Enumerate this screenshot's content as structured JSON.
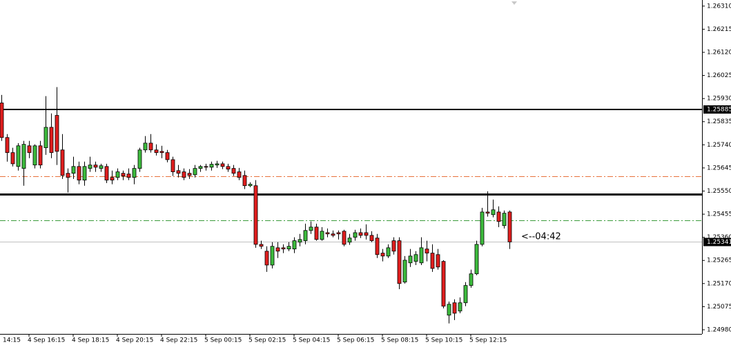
{
  "chart_data": {
    "type": "candlestick",
    "categories": [
      null,
      null,
      null,
      null,
      null,
      "4 Sep 16:15",
      null,
      null,
      null,
      null,
      null,
      null,
      null,
      "4 Sep 18:15",
      null,
      null,
      null,
      null,
      null,
      null,
      null,
      "4 Sep 20:15",
      null,
      null,
      null,
      null,
      null,
      null,
      null,
      "4 Sep 22:15",
      null,
      null,
      null,
      null,
      null,
      null,
      null,
      "5 Sep 00:15",
      null,
      null,
      null,
      null,
      null,
      null,
      null,
      "5 Sep 02:15",
      null,
      null,
      null,
      null,
      null,
      null,
      null,
      "5 Sep 04:15",
      null,
      null,
      null,
      null,
      null,
      null,
      null,
      "5 Sep 06:15",
      null,
      null,
      null,
      null,
      null,
      null,
      null,
      "5 Sep 08:15",
      null,
      null,
      null,
      null,
      null,
      null,
      null,
      "5 Sep 10:15",
      null,
      null,
      null,
      null,
      null,
      null,
      null,
      "5 Sep 12:15",
      null,
      null,
      null,
      null,
      null,
      null,
      null
    ],
    "first_label": "14:15",
    "open": [
      1.25912,
      1.2577,
      1.25708,
      1.25651,
      1.25643,
      1.25736,
      1.25657,
      1.25736,
      1.25728,
      1.25812,
      1.25861,
      1.25719,
      1.25623,
      1.25623,
      1.25651,
      1.25595,
      1.25643,
      1.25657,
      1.25643,
      1.25651,
      1.25606,
      1.25606,
      1.25623,
      1.2562,
      1.25606,
      1.25643,
      1.25719,
      1.25747,
      1.25719,
      1.25713,
      1.25708,
      1.25679,
      1.25634,
      1.25629,
      1.25623,
      1.25617,
      1.25643,
      1.25651,
      1.25648,
      1.25657,
      1.25662,
      1.25651,
      1.25643,
      1.25629,
      1.25614,
      1.25572,
      1.25572,
      1.25331,
      1.25303,
      1.25246,
      1.25317,
      1.25317,
      1.25312,
      1.25312,
      1.2534,
      1.25346,
      1.25388,
      1.25402,
      1.25351,
      1.25379,
      1.25374,
      1.25379,
      1.25385,
      1.2534,
      1.2536,
      1.25379,
      1.25379,
      1.25368,
      1.25357,
      1.25295,
      1.25283,
      1.25346,
      1.25346,
      1.25176,
      1.25255,
      1.25261,
      1.25255,
      1.25312,
      1.25295,
      1.25289,
      1.25261,
      1.2504,
      1.25091,
      1.25057,
      1.25091,
      1.25162,
      1.2521,
      1.25331,
      1.25464,
      1.25453,
      1.25464,
      1.25408,
      1.25464
    ],
    "high": [
      1.25945,
      1.25784,
      1.25728,
      1.25747,
      1.25756,
      1.25756,
      1.25742,
      1.25756,
      1.2594,
      1.25869,
      1.25977,
      1.25784,
      1.25643,
      1.25691,
      1.25671,
      1.25671,
      1.25691,
      1.25671,
      1.25662,
      1.25662,
      1.25634,
      1.25643,
      1.25634,
      1.25643,
      1.25657,
      1.25728,
      1.25776,
      1.25784,
      1.25742,
      1.25736,
      1.25719,
      1.25691,
      1.25657,
      1.25643,
      1.2564,
      1.25657,
      1.25657,
      1.25662,
      1.25671,
      1.25674,
      1.25671,
      1.25662,
      1.25657,
      1.25645,
      1.25634,
      1.25586,
      1.25595,
      1.25346,
      1.25323,
      1.2534,
      1.2534,
      1.25331,
      1.2534,
      1.2536,
      1.25374,
      1.25416,
      1.25425,
      1.25416,
      1.25402,
      1.25396,
      1.25388,
      1.25388,
      1.25391,
      1.25374,
      1.25391,
      1.25396,
      1.25413,
      1.25385,
      1.25374,
      1.25312,
      1.25331,
      1.2536,
      1.2536,
      1.25283,
      1.25312,
      1.25303,
      1.2536,
      1.25346,
      1.25331,
      1.25312,
      1.25266,
      1.25096,
      1.25105,
      1.25113,
      1.25176,
      1.25227,
      1.25346,
      1.25481,
      1.25549,
      1.25515,
      1.25487,
      1.2547,
      1.2547
    ],
    "low": [
      1.25756,
      1.25671,
      1.25651,
      1.25634,
      1.25572,
      1.25685,
      1.25643,
      1.25643,
      1.25699,
      1.25685,
      1.25657,
      1.256,
      1.25544,
      1.256,
      1.25578,
      1.25572,
      1.25629,
      1.25629,
      1.25629,
      1.25583,
      1.25578,
      1.25595,
      1.25595,
      1.25595,
      1.25578,
      1.25629,
      1.25708,
      1.25708,
      1.25696,
      1.25685,
      1.25668,
      1.25612,
      1.25606,
      1.25595,
      1.256,
      1.25606,
      1.25629,
      1.25634,
      1.25634,
      1.25645,
      1.2564,
      1.25629,
      1.25612,
      1.25595,
      1.25558,
      1.25566,
      1.25317,
      1.25312,
      1.25218,
      1.25232,
      1.25275,
      1.25295,
      1.25303,
      1.25295,
      1.25323,
      1.25331,
      1.25374,
      1.25346,
      1.25346,
      1.2536,
      1.2536,
      1.25351,
      1.25323,
      1.25329,
      1.25346,
      1.25357,
      1.25351,
      1.2534,
      1.25275,
      1.25261,
      1.25275,
      1.25289,
      1.25147,
      1.2517,
      1.25238,
      1.25246,
      1.25246,
      1.25261,
      1.25218,
      1.25227,
      1.25068,
      1.25006,
      1.2502,
      1.25048,
      1.25077,
      1.25153,
      1.25204,
      1.25323,
      1.25445,
      1.25442,
      1.25402,
      1.25396,
      1.25312
    ],
    "close": [
      1.2577,
      1.25708,
      1.25662,
      1.25736,
      1.25742,
      1.25708,
      1.25736,
      1.25657,
      1.25812,
      1.25708,
      1.25713,
      1.25614,
      1.25606,
      1.25651,
      1.25595,
      1.25651,
      1.25657,
      1.25648,
      1.25654,
      1.25595,
      1.25595,
      1.25629,
      1.25612,
      1.25606,
      1.25643,
      1.25719,
      1.25747,
      1.25719,
      1.25708,
      1.25708,
      1.25679,
      1.25629,
      1.25623,
      1.25606,
      1.25614,
      1.25643,
      1.25651,
      1.25648,
      1.2566,
      1.25662,
      1.25651,
      1.2564,
      1.25623,
      1.25606,
      1.25572,
      1.25578,
      1.25331,
      1.25323,
      1.25246,
      1.25323,
      1.25303,
      1.25312,
      1.25323,
      1.25346,
      1.25351,
      1.25388,
      1.25402,
      1.25351,
      1.25385,
      1.25374,
      1.25368,
      1.25374,
      1.25331,
      1.25357,
      1.25379,
      1.25368,
      1.25368,
      1.25346,
      1.25289,
      1.25283,
      1.25317,
      1.25303,
      1.2517,
      1.25266,
      1.25283,
      1.25289,
      1.25317,
      1.25295,
      1.25232,
      1.25238,
      1.25077,
      1.25085,
      1.25048,
      1.25091,
      1.25162,
      1.2521,
      1.25331,
      1.25464,
      1.25459,
      1.25473,
      1.25425,
      1.25459,
      1.25341
    ],
    "bull_color": "#3dbb3d",
    "bear_color": "#e01e1e",
    "ylim": [
      1.24963,
      1.26335
    ],
    "yticks": [
      {
        "value": 1.2631,
        "label": "1.26310"
      },
      1.26215,
      {
        "value": 1.2612,
        "label": "1.26120"
      },
      1.26025,
      {
        "value": 1.2593,
        "label": "1.25930"
      },
      1.25835,
      {
        "value": 1.2574,
        "label": "1.25740"
      },
      1.25645,
      {
        "value": 1.2555,
        "label": "1.25550"
      },
      1.25455,
      {
        "value": 1.2536,
        "label": "1.25360"
      },
      1.25265,
      {
        "value": 1.2517,
        "label": "1.25170"
      },
      1.25075,
      {
        "value": 1.2498,
        "label": "1.24980"
      }
    ],
    "levels": [
      {
        "value": 1.25885,
        "color": "#000000",
        "width": 2,
        "dash": "solid",
        "tag": true
      },
      {
        "value": 1.25537,
        "color": "#000000",
        "width": 3,
        "dash": "solid",
        "tag": false
      },
      {
        "value": 1.25611,
        "color": "#e8703a",
        "width": 1,
        "dash": "dashdot",
        "tag": false
      },
      {
        "value": 1.2543,
        "color": "#3a9a3a",
        "width": 1,
        "dash": "dashdot",
        "tag": false
      },
      {
        "value": 1.25341,
        "color": "#c0c0c0",
        "width": 1,
        "dash": "solid",
        "tag": true
      }
    ],
    "timer_label": "<--04:42"
  }
}
